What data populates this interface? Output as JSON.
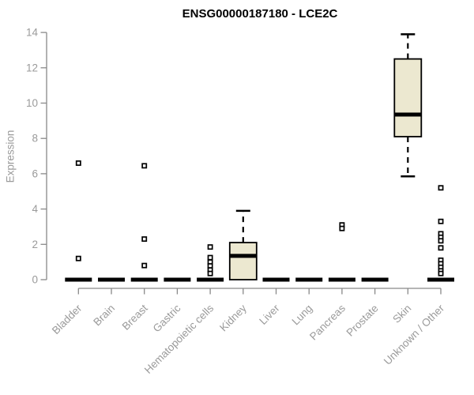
{
  "title": "ENSG00000187180 - LCE2C",
  "chart_data": {
    "type": "boxplot",
    "title": "ENSG00000187180 - LCE2C",
    "ylabel": "Expression",
    "xlabel": "",
    "ylim": [
      0,
      14
    ],
    "yticks": [
      0,
      2,
      4,
      6,
      8,
      10,
      12,
      14
    ],
    "grid": false,
    "legend": false,
    "categories": [
      "Bladder",
      "Brain",
      "Breast",
      "Gastric",
      "Hematopoietic cells",
      "Kidney",
      "Liver",
      "Lung",
      "Pancreas",
      "Prostate",
      "Skin",
      "Unknown / Other"
    ],
    "boxes": [
      {
        "category": "Bladder",
        "low": 0,
        "q1": 0,
        "median": 0,
        "q3": 0,
        "high": 0,
        "outliers": [
          6.6,
          1.2
        ]
      },
      {
        "category": "Brain",
        "low": 0,
        "q1": 0,
        "median": 0,
        "q3": 0,
        "high": 0,
        "outliers": []
      },
      {
        "category": "Breast",
        "low": 0,
        "q1": 0,
        "median": 0,
        "q3": 0,
        "high": 0,
        "outliers": [
          6.45,
          2.3,
          0.8
        ]
      },
      {
        "category": "Gastric",
        "low": 0,
        "q1": 0,
        "median": 0,
        "q3": 0,
        "high": 0,
        "outliers": []
      },
      {
        "category": "Hematopoietic cells",
        "low": 0,
        "q1": 0,
        "median": 0,
        "q3": 0,
        "high": 0,
        "outliers": [
          1.85,
          1.25,
          1.0,
          0.78,
          0.55,
          0.35
        ]
      },
      {
        "category": "Kidney",
        "low": 0,
        "q1": 0,
        "median": 1.35,
        "q3": 2.1,
        "high": 3.9,
        "outliers": []
      },
      {
        "category": "Liver",
        "low": 0,
        "q1": 0,
        "median": 0,
        "q3": 0,
        "high": 0,
        "outliers": []
      },
      {
        "category": "Lung",
        "low": 0,
        "q1": 0,
        "median": 0,
        "q3": 0,
        "high": 0,
        "outliers": []
      },
      {
        "category": "Pancreas",
        "low": 0,
        "q1": 0,
        "median": 0,
        "q3": 0,
        "high": 0,
        "outliers": [
          3.1,
          2.9
        ]
      },
      {
        "category": "Prostate",
        "low": 0,
        "q1": 0,
        "median": 0,
        "q3": 0,
        "high": 0,
        "outliers": []
      },
      {
        "category": "Skin",
        "low": 5.85,
        "q1": 8.1,
        "median": 9.35,
        "q3": 12.5,
        "high": 13.9,
        "outliers": []
      },
      {
        "category": "Unknown / Other",
        "low": 0,
        "q1": 0,
        "median": 0,
        "q3": 0,
        "high": 0,
        "outliers": [
          5.2,
          3.3,
          2.6,
          2.4,
          2.2,
          1.8,
          1.1,
          0.9,
          0.7,
          0.5,
          0.35
        ]
      }
    ],
    "colors": {
      "box_fill": "#ece8d0",
      "box_border": "#000000",
      "median": "#000000",
      "whisker": "#000000",
      "outlier": "#000000",
      "axis": "#898989",
      "tick_label": "#9a9a9a",
      "title": "#000000",
      "background": "#ffffff"
    }
  }
}
